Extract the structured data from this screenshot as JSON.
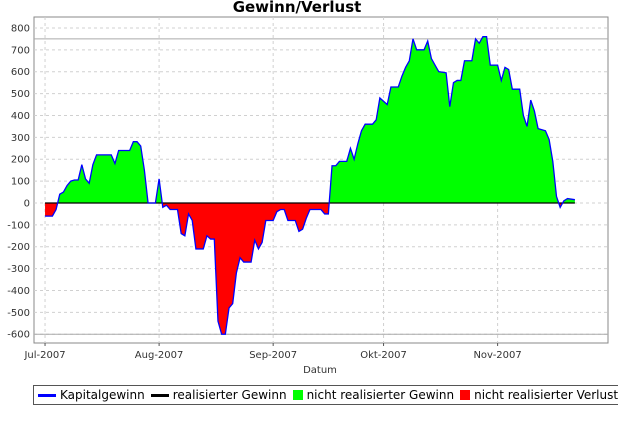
{
  "chart_data": {
    "type": "area",
    "title": "Gewinn/Verlust",
    "xlabel": "Datum",
    "ylabel": "",
    "ylim": [
      -600,
      800
    ],
    "yticks": [
      -600,
      -500,
      -400,
      -300,
      -200,
      -100,
      0,
      100,
      200,
      300,
      400,
      500,
      600,
      700,
      800
    ],
    "xlim": [
      "2007-06-28",
      "2007-12-01"
    ],
    "xticks": [
      {
        "date": "2007-07-01",
        "label": "Jul-2007"
      },
      {
        "date": "2007-08-01",
        "label": "Aug-2007"
      },
      {
        "date": "2007-09-01",
        "label": "Sep-2007"
      },
      {
        "date": "2007-10-01",
        "label": "Okt-2007"
      },
      {
        "date": "2007-11-01",
        "label": "Nov-2007"
      }
    ],
    "grid": true,
    "legend_position": "bottom-left",
    "colors": {
      "Kapitalgewinn": "#0000ff",
      "realisierter Gewinn": "#000000",
      "nicht realisierter Gewinn": "#00ff00",
      "nicht realisierter Verlust": "#ff0000",
      "grid": "#d0d0d0",
      "reference_line": "#aaaaaa"
    },
    "reference_lines": [
      750,
      -600
    ],
    "series": [
      {
        "name": "Kapitalgewinn",
        "points": [
          [
            "2007-07-01",
            -60
          ],
          [
            "2007-07-03",
            -60
          ],
          [
            "2007-07-04",
            -30
          ],
          [
            "2007-07-05",
            40
          ],
          [
            "2007-07-06",
            50
          ],
          [
            "2007-07-07",
            80
          ],
          [
            "2007-07-08",
            100
          ],
          [
            "2007-07-09",
            105
          ],
          [
            "2007-07-10",
            105
          ],
          [
            "2007-07-11",
            175
          ],
          [
            "2007-07-12",
            110
          ],
          [
            "2007-07-13",
            90
          ],
          [
            "2007-07-14",
            175
          ],
          [
            "2007-07-15",
            220
          ],
          [
            "2007-07-19",
            220
          ],
          [
            "2007-07-20",
            180
          ],
          [
            "2007-07-21",
            240
          ],
          [
            "2007-07-24",
            240
          ],
          [
            "2007-07-25",
            280
          ],
          [
            "2007-07-26",
            280
          ],
          [
            "2007-07-27",
            260
          ],
          [
            "2007-07-28",
            150
          ],
          [
            "2007-07-29",
            0
          ],
          [
            "2007-07-31",
            0
          ],
          [
            "2007-08-01",
            110
          ],
          [
            "2007-08-02",
            -20
          ],
          [
            "2007-08-03",
            -10
          ],
          [
            "2007-08-04",
            -30
          ],
          [
            "2007-08-06",
            -30
          ],
          [
            "2007-08-07",
            -140
          ],
          [
            "2007-08-08",
            -150
          ],
          [
            "2007-08-09",
            -50
          ],
          [
            "2007-08-10",
            -80
          ],
          [
            "2007-08-11",
            -210
          ],
          [
            "2007-08-13",
            -210
          ],
          [
            "2007-08-14",
            -150
          ],
          [
            "2007-08-15",
            -165
          ],
          [
            "2007-08-16",
            -165
          ],
          [
            "2007-08-17",
            -540
          ],
          [
            "2007-08-18",
            -600
          ],
          [
            "2007-08-19",
            -600
          ],
          [
            "2007-08-20",
            -480
          ],
          [
            "2007-08-21",
            -460
          ],
          [
            "2007-08-22",
            -320
          ],
          [
            "2007-08-23",
            -250
          ],
          [
            "2007-08-24",
            -270
          ],
          [
            "2007-08-26",
            -270
          ],
          [
            "2007-08-27",
            -170
          ],
          [
            "2007-08-28",
            -210
          ],
          [
            "2007-08-29",
            -180
          ],
          [
            "2007-08-30",
            -80
          ],
          [
            "2007-09-01",
            -80
          ],
          [
            "2007-09-02",
            -40
          ],
          [
            "2007-09-03",
            -30
          ],
          [
            "2007-09-04",
            -30
          ],
          [
            "2007-09-05",
            -80
          ],
          [
            "2007-09-07",
            -80
          ],
          [
            "2007-09-08",
            -130
          ],
          [
            "2007-09-09",
            -120
          ],
          [
            "2007-09-10",
            -70
          ],
          [
            "2007-09-11",
            -30
          ],
          [
            "2007-09-14",
            -30
          ],
          [
            "2007-09-15",
            -50
          ],
          [
            "2007-09-16",
            -50
          ],
          [
            "2007-09-17",
            170
          ],
          [
            "2007-09-18",
            170
          ],
          [
            "2007-09-19",
            190
          ],
          [
            "2007-09-21",
            190
          ],
          [
            "2007-09-22",
            250
          ],
          [
            "2007-09-23",
            200
          ],
          [
            "2007-09-24",
            270
          ],
          [
            "2007-09-25",
            330
          ],
          [
            "2007-09-26",
            360
          ],
          [
            "2007-09-28",
            360
          ],
          [
            "2007-09-29",
            380
          ],
          [
            "2007-09-30",
            480
          ],
          [
            "2007-10-02",
            450
          ],
          [
            "2007-10-03",
            530
          ],
          [
            "2007-10-05",
            530
          ],
          [
            "2007-10-06",
            580
          ],
          [
            "2007-10-07",
            620
          ],
          [
            "2007-10-08",
            650
          ],
          [
            "2007-10-09",
            750
          ],
          [
            "2007-10-10",
            700
          ],
          [
            "2007-10-12",
            700
          ],
          [
            "2007-10-13",
            740
          ],
          [
            "2007-10-14",
            660
          ],
          [
            "2007-10-15",
            630
          ],
          [
            "2007-10-16",
            600
          ],
          [
            "2007-10-18",
            595
          ],
          [
            "2007-10-19",
            440
          ],
          [
            "2007-10-20",
            550
          ],
          [
            "2007-10-21",
            560
          ],
          [
            "2007-10-22",
            560
          ],
          [
            "2007-10-23",
            650
          ],
          [
            "2007-10-25",
            650
          ],
          [
            "2007-10-26",
            750
          ],
          [
            "2007-10-27",
            730
          ],
          [
            "2007-10-28",
            760
          ],
          [
            "2007-10-29",
            760
          ],
          [
            "2007-10-30",
            630
          ],
          [
            "2007-11-01",
            630
          ],
          [
            "2007-11-02",
            560
          ],
          [
            "2007-11-03",
            620
          ],
          [
            "2007-11-04",
            610
          ],
          [
            "2007-11-05",
            520
          ],
          [
            "2007-11-07",
            520
          ],
          [
            "2007-11-08",
            400
          ],
          [
            "2007-11-09",
            350
          ],
          [
            "2007-11-10",
            470
          ],
          [
            "2007-11-11",
            420
          ],
          [
            "2007-11-12",
            340
          ],
          [
            "2007-11-14",
            330
          ],
          [
            "2007-11-15",
            290
          ],
          [
            "2007-11-16",
            190
          ],
          [
            "2007-11-17",
            30
          ],
          [
            "2007-11-18",
            -20
          ],
          [
            "2007-11-19",
            10
          ],
          [
            "2007-11-20",
            20
          ],
          [
            "2007-11-22",
            15
          ]
        ]
      },
      {
        "name": "realisierter Gewinn",
        "points": []
      },
      {
        "name": "nicht realisierter Gewinn",
        "fill_of": "Kapitalgewinn",
        "where": "above_zero"
      },
      {
        "name": "nicht realisierter Verlust",
        "fill_of": "Kapitalgewinn",
        "where": "below_zero"
      }
    ]
  },
  "legend": {
    "items": [
      {
        "label": "Kapitalgewinn",
        "kind": "line",
        "color": "#0000ff"
      },
      {
        "label": "realisierter Gewinn",
        "kind": "line",
        "color": "#000000"
      },
      {
        "label": "nicht realisierter Gewinn",
        "kind": "box",
        "color": "#00ff00"
      },
      {
        "label": "nicht realisierter Verlust",
        "kind": "box",
        "color": "#ff0000"
      }
    ]
  }
}
